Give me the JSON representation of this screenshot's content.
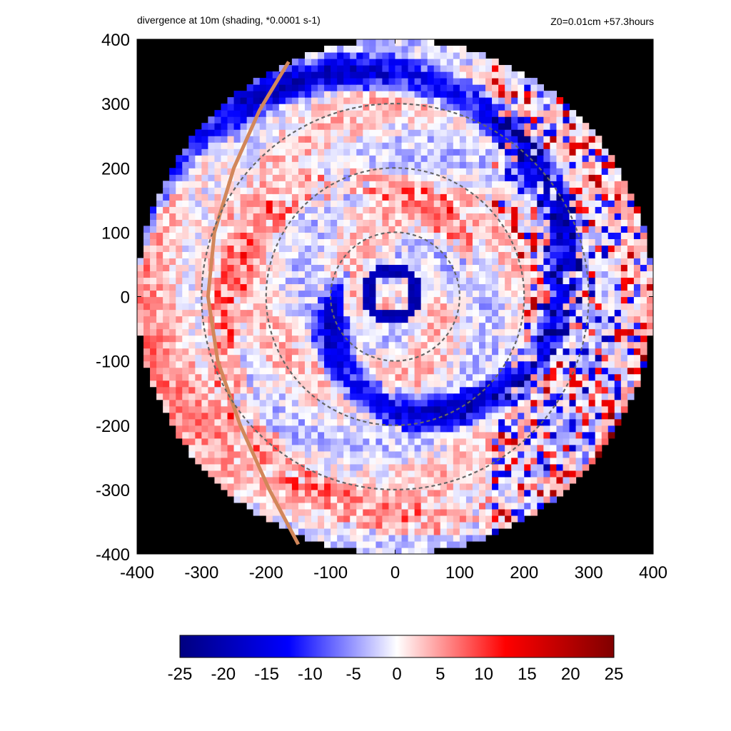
{
  "chart_data": {
    "type": "heatmap",
    "title": "divergence at 10m (shading, *0.0001 s-1)",
    "subtitle": "Z0=0.01cm  +57.3hours",
    "xlabel": "",
    "ylabel": "",
    "xlim": [
      -400,
      400
    ],
    "ylim": [
      -400,
      400
    ],
    "x_ticks": [
      -400,
      -300,
      -200,
      -100,
      0,
      100,
      200,
      300,
      400
    ],
    "y_ticks": [
      -400,
      -300,
      -200,
      -100,
      0,
      100,
      200,
      300,
      400
    ],
    "domain_radius": 400,
    "dashed_circle_radii": [
      100,
      200,
      300
    ],
    "background_outside_domain": "#000000",
    "colorbar": {
      "min": -25,
      "max": 25,
      "ticks": [
        -25,
        -20,
        -15,
        -10,
        -5,
        0,
        5,
        10,
        15,
        20,
        25
      ],
      "colors": [
        "#000080",
        "#0000ff",
        "#ffffff",
        "#ff0000",
        "#800000"
      ]
    },
    "features": {
      "eyewall_convergence_ring": {
        "center": [
          -5,
          5
        ],
        "radius": 38,
        "value": -22
      },
      "coastline_color": "#d2875a"
    },
    "colors": {
      "convergence": "#0000cc",
      "divergence": "#e03030",
      "dashed_circle": "#666666"
    }
  }
}
